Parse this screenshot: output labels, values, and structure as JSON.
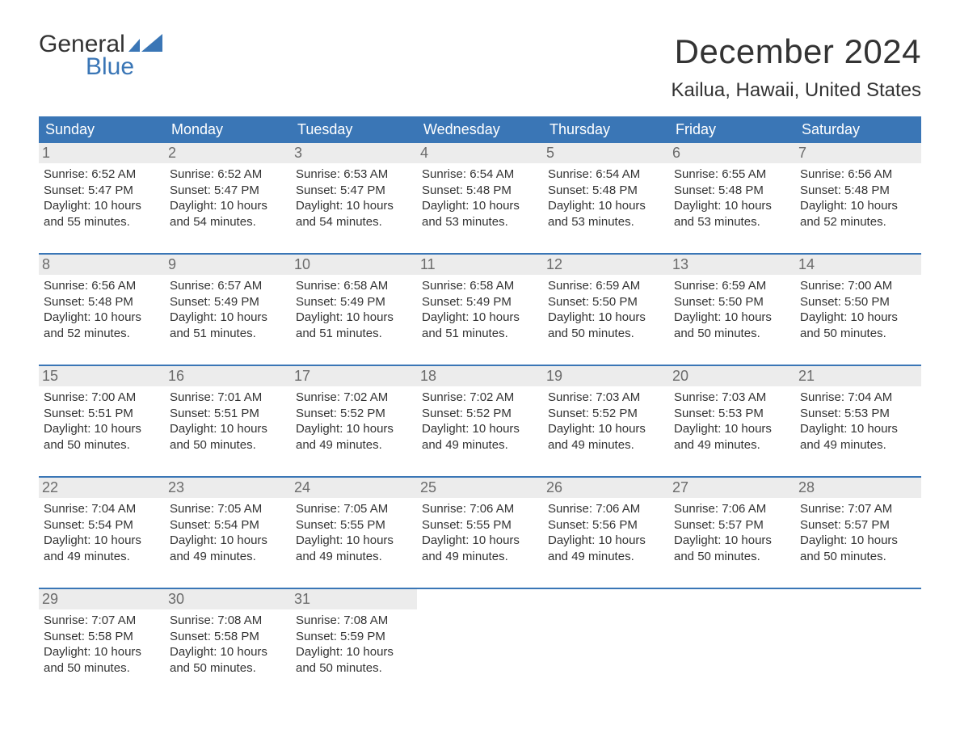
{
  "logo": {
    "text_top": "General",
    "text_bottom": "Blue",
    "flag_color": "#3a76b6",
    "top_color": "#333333"
  },
  "title": "December 2024",
  "location": "Kailua, Hawaii, United States",
  "colors": {
    "header_bg": "#3a76b6",
    "header_text": "#ffffff",
    "daynum_bg": "#ececec",
    "daynum_text": "#6b6b6b",
    "body_text": "#333333",
    "week_divider": "#3a76b6",
    "background": "#ffffff"
  },
  "fonts": {
    "title_size_pt": 32,
    "location_size_pt": 18,
    "day_header_size_pt": 14,
    "daynum_size_pt": 14,
    "body_size_pt": 11,
    "family": "Arial"
  },
  "day_headers": [
    "Sunday",
    "Monday",
    "Tuesday",
    "Wednesday",
    "Thursday",
    "Friday",
    "Saturday"
  ],
  "weeks": [
    [
      {
        "num": "1",
        "sunrise": "Sunrise: 6:52 AM",
        "sunset": "Sunset: 5:47 PM",
        "d1": "Daylight: 10 hours",
        "d2": "and 55 minutes."
      },
      {
        "num": "2",
        "sunrise": "Sunrise: 6:52 AM",
        "sunset": "Sunset: 5:47 PM",
        "d1": "Daylight: 10 hours",
        "d2": "and 54 minutes."
      },
      {
        "num": "3",
        "sunrise": "Sunrise: 6:53 AM",
        "sunset": "Sunset: 5:47 PM",
        "d1": "Daylight: 10 hours",
        "d2": "and 54 minutes."
      },
      {
        "num": "4",
        "sunrise": "Sunrise: 6:54 AM",
        "sunset": "Sunset: 5:48 PM",
        "d1": "Daylight: 10 hours",
        "d2": "and 53 minutes."
      },
      {
        "num": "5",
        "sunrise": "Sunrise: 6:54 AM",
        "sunset": "Sunset: 5:48 PM",
        "d1": "Daylight: 10 hours",
        "d2": "and 53 minutes."
      },
      {
        "num": "6",
        "sunrise": "Sunrise: 6:55 AM",
        "sunset": "Sunset: 5:48 PM",
        "d1": "Daylight: 10 hours",
        "d2": "and 53 minutes."
      },
      {
        "num": "7",
        "sunrise": "Sunrise: 6:56 AM",
        "sunset": "Sunset: 5:48 PM",
        "d1": "Daylight: 10 hours",
        "d2": "and 52 minutes."
      }
    ],
    [
      {
        "num": "8",
        "sunrise": "Sunrise: 6:56 AM",
        "sunset": "Sunset: 5:48 PM",
        "d1": "Daylight: 10 hours",
        "d2": "and 52 minutes."
      },
      {
        "num": "9",
        "sunrise": "Sunrise: 6:57 AM",
        "sunset": "Sunset: 5:49 PM",
        "d1": "Daylight: 10 hours",
        "d2": "and 51 minutes."
      },
      {
        "num": "10",
        "sunrise": "Sunrise: 6:58 AM",
        "sunset": "Sunset: 5:49 PM",
        "d1": "Daylight: 10 hours",
        "d2": "and 51 minutes."
      },
      {
        "num": "11",
        "sunrise": "Sunrise: 6:58 AM",
        "sunset": "Sunset: 5:49 PM",
        "d1": "Daylight: 10 hours",
        "d2": "and 51 minutes."
      },
      {
        "num": "12",
        "sunrise": "Sunrise: 6:59 AM",
        "sunset": "Sunset: 5:50 PM",
        "d1": "Daylight: 10 hours",
        "d2": "and 50 minutes."
      },
      {
        "num": "13",
        "sunrise": "Sunrise: 6:59 AM",
        "sunset": "Sunset: 5:50 PM",
        "d1": "Daylight: 10 hours",
        "d2": "and 50 minutes."
      },
      {
        "num": "14",
        "sunrise": "Sunrise: 7:00 AM",
        "sunset": "Sunset: 5:50 PM",
        "d1": "Daylight: 10 hours",
        "d2": "and 50 minutes."
      }
    ],
    [
      {
        "num": "15",
        "sunrise": "Sunrise: 7:00 AM",
        "sunset": "Sunset: 5:51 PM",
        "d1": "Daylight: 10 hours",
        "d2": "and 50 minutes."
      },
      {
        "num": "16",
        "sunrise": "Sunrise: 7:01 AM",
        "sunset": "Sunset: 5:51 PM",
        "d1": "Daylight: 10 hours",
        "d2": "and 50 minutes."
      },
      {
        "num": "17",
        "sunrise": "Sunrise: 7:02 AM",
        "sunset": "Sunset: 5:52 PM",
        "d1": "Daylight: 10 hours",
        "d2": "and 49 minutes."
      },
      {
        "num": "18",
        "sunrise": "Sunrise: 7:02 AM",
        "sunset": "Sunset: 5:52 PM",
        "d1": "Daylight: 10 hours",
        "d2": "and 49 minutes."
      },
      {
        "num": "19",
        "sunrise": "Sunrise: 7:03 AM",
        "sunset": "Sunset: 5:52 PM",
        "d1": "Daylight: 10 hours",
        "d2": "and 49 minutes."
      },
      {
        "num": "20",
        "sunrise": "Sunrise: 7:03 AM",
        "sunset": "Sunset: 5:53 PM",
        "d1": "Daylight: 10 hours",
        "d2": "and 49 minutes."
      },
      {
        "num": "21",
        "sunrise": "Sunrise: 7:04 AM",
        "sunset": "Sunset: 5:53 PM",
        "d1": "Daylight: 10 hours",
        "d2": "and 49 minutes."
      }
    ],
    [
      {
        "num": "22",
        "sunrise": "Sunrise: 7:04 AM",
        "sunset": "Sunset: 5:54 PM",
        "d1": "Daylight: 10 hours",
        "d2": "and 49 minutes."
      },
      {
        "num": "23",
        "sunrise": "Sunrise: 7:05 AM",
        "sunset": "Sunset: 5:54 PM",
        "d1": "Daylight: 10 hours",
        "d2": "and 49 minutes."
      },
      {
        "num": "24",
        "sunrise": "Sunrise: 7:05 AM",
        "sunset": "Sunset: 5:55 PM",
        "d1": "Daylight: 10 hours",
        "d2": "and 49 minutes."
      },
      {
        "num": "25",
        "sunrise": "Sunrise: 7:06 AM",
        "sunset": "Sunset: 5:55 PM",
        "d1": "Daylight: 10 hours",
        "d2": "and 49 minutes."
      },
      {
        "num": "26",
        "sunrise": "Sunrise: 7:06 AM",
        "sunset": "Sunset: 5:56 PM",
        "d1": "Daylight: 10 hours",
        "d2": "and 49 minutes."
      },
      {
        "num": "27",
        "sunrise": "Sunrise: 7:06 AM",
        "sunset": "Sunset: 5:57 PM",
        "d1": "Daylight: 10 hours",
        "d2": "and 50 minutes."
      },
      {
        "num": "28",
        "sunrise": "Sunrise: 7:07 AM",
        "sunset": "Sunset: 5:57 PM",
        "d1": "Daylight: 10 hours",
        "d2": "and 50 minutes."
      }
    ],
    [
      {
        "num": "29",
        "sunrise": "Sunrise: 7:07 AM",
        "sunset": "Sunset: 5:58 PM",
        "d1": "Daylight: 10 hours",
        "d2": "and 50 minutes."
      },
      {
        "num": "30",
        "sunrise": "Sunrise: 7:08 AM",
        "sunset": "Sunset: 5:58 PM",
        "d1": "Daylight: 10 hours",
        "d2": "and 50 minutes."
      },
      {
        "num": "31",
        "sunrise": "Sunrise: 7:08 AM",
        "sunset": "Sunset: 5:59 PM",
        "d1": "Daylight: 10 hours",
        "d2": "and 50 minutes."
      },
      null,
      null,
      null,
      null
    ]
  ]
}
